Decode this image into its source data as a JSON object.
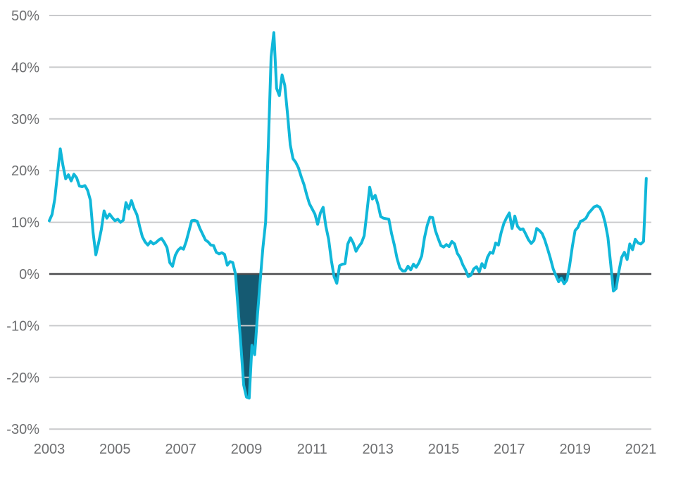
{
  "chart_data": {
    "type": "line",
    "title": "",
    "subtitle": "",
    "unit": "%",
    "grid": true,
    "legend": "none",
    "ylim": [
      -30,
      50
    ],
    "y_ticks": [
      50,
      40,
      30,
      20,
      10,
      0,
      -10,
      -20,
      -30
    ],
    "y_tick_labels": [
      "50%",
      "40%",
      "30%",
      "20%",
      "10%",
      "0%",
      "-10%",
      "-20%",
      "-30%"
    ],
    "x_tick_labels": [
      "2003",
      "2005",
      "2007",
      "2009",
      "2011",
      "2013",
      "2015",
      "2017",
      "2019",
      "2021"
    ],
    "x_tick_month_indices": [
      0,
      24,
      48,
      72,
      96,
      120,
      144,
      168,
      192,
      216
    ],
    "zero_line_emphasized": true,
    "negative_area_shaded": true,
    "colors": {
      "line": "#10b7d9",
      "negative_fill": "#155a72",
      "grid_line": "#c9cacc",
      "zero_line": "#4b4c4e",
      "tick_label": "#6e6f71",
      "background": "#ffffff"
    },
    "series": [
      {
        "name": "yoy-percent-change",
        "frequency": "monthly",
        "start": "2003-01",
        "end": "2021-03",
        "values": [
          10.3,
          11.5,
          14.5,
          19.5,
          24.2,
          21.0,
          18.4,
          19.2,
          18.0,
          19.3,
          18.6,
          17.0,
          16.9,
          17.1,
          16.2,
          14.3,
          8.0,
          3.7,
          6.0,
          8.6,
          12.2,
          10.8,
          11.6,
          10.9,
          10.3,
          10.6,
          10.0,
          10.4,
          13.8,
          12.6,
          14.2,
          12.6,
          11.5,
          9.2,
          7.2,
          6.2,
          5.6,
          6.3,
          5.8,
          6.1,
          6.6,
          6.9,
          6.1,
          5.1,
          2.2,
          1.5,
          3.6,
          4.6,
          5.1,
          4.8,
          6.3,
          8.3,
          10.3,
          10.4,
          10.2,
          8.8,
          7.7,
          6.6,
          6.2,
          5.6,
          5.5,
          4.2,
          3.9,
          4.1,
          3.8,
          1.7,
          2.4,
          2.2,
          0.0,
          -7.0,
          -14.0,
          -21.5,
          -23.8,
          -24.0,
          -13.8,
          -15.6,
          -8.0,
          -1.5,
          5.0,
          10.0,
          25.0,
          42.0,
          46.7,
          35.9,
          34.5,
          38.5,
          36.5,
          31.0,
          25.0,
          22.3,
          21.6,
          20.5,
          18.8,
          17.3,
          15.3,
          13.6,
          12.6,
          11.6,
          9.6,
          11.8,
          12.9,
          9.2,
          6.7,
          2.6,
          -0.5,
          -1.8,
          1.6,
          1.9,
          2.0,
          5.8,
          7.0,
          6.0,
          4.4,
          5.3,
          6.0,
          7.4,
          12.0,
          16.8,
          14.5,
          15.2,
          13.5,
          11.1,
          10.8,
          10.7,
          10.6,
          7.8,
          5.6,
          3.0,
          1.2,
          0.6,
          0.6,
          1.5,
          0.8,
          1.9,
          1.3,
          2.2,
          3.5,
          7.0,
          9.4,
          11.0,
          10.9,
          8.4,
          6.9,
          5.5,
          5.2,
          5.7,
          5.3,
          6.3,
          5.8,
          4.0,
          3.2,
          1.8,
          0.8,
          -0.5,
          -0.2,
          1.0,
          1.4,
          0.4,
          2.0,
          1.2,
          3.2,
          4.2,
          4.0,
          6.0,
          5.6,
          8.0,
          9.8,
          10.9,
          11.8,
          8.8,
          11.2,
          9.2,
          8.6,
          8.7,
          7.7,
          6.6,
          5.9,
          6.5,
          8.8,
          8.4,
          7.8,
          6.5,
          4.8,
          3.0,
          1.0,
          -0.3,
          -1.5,
          -0.8,
          -1.9,
          -1.2,
          1.6,
          5.3,
          8.4,
          9.0,
          10.2,
          10.4,
          10.8,
          11.8,
          12.4,
          13.0,
          13.2,
          12.9,
          11.8,
          9.9,
          7.1,
          2.0,
          -3.3,
          -2.8,
          0.5,
          3.2,
          4.2,
          2.8,
          5.8,
          4.7,
          6.7,
          6.0,
          5.8,
          6.3,
          18.5
        ]
      }
    ]
  }
}
